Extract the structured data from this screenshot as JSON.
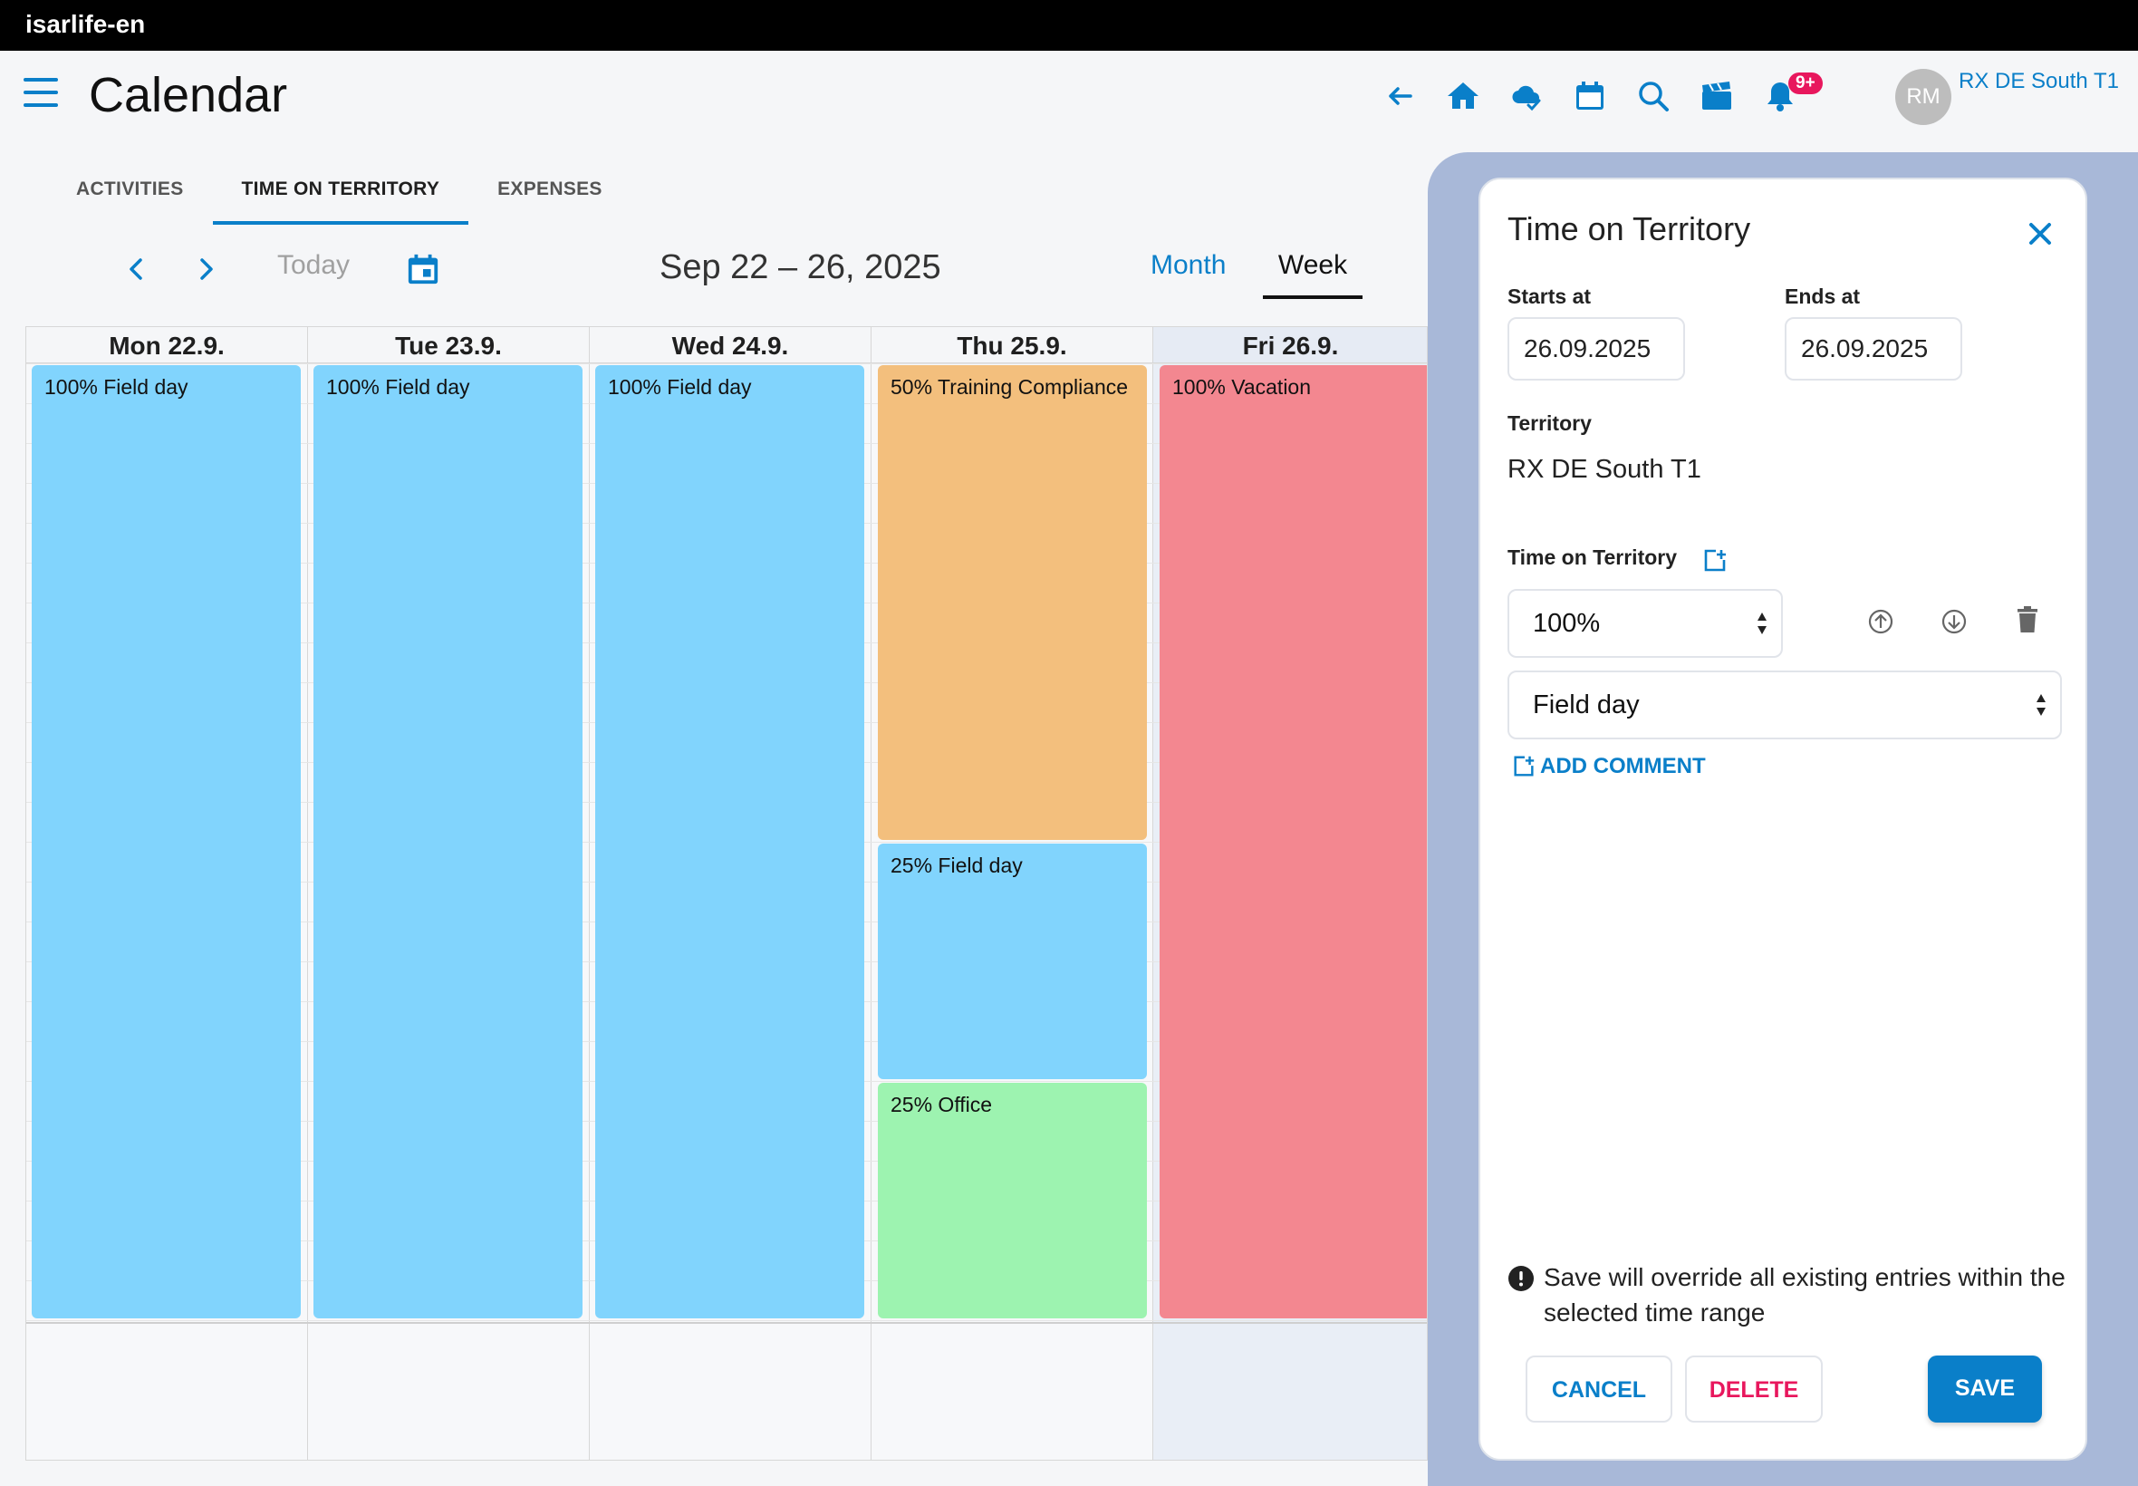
{
  "status_bar": {
    "app_name": "isarlife-en"
  },
  "header": {
    "title": "Calendar",
    "notification_badge": "9+",
    "avatar_initials": "RM",
    "user_territory": "RX DE South T1",
    "icons": [
      "back-arrow-icon",
      "home-icon",
      "cloud-sync-icon",
      "calendar-icon",
      "search-icon",
      "clapperboard-icon",
      "bell-icon"
    ]
  },
  "tabs": [
    {
      "label": "ACTIVITIES",
      "active": false
    },
    {
      "label": "TIME ON TERRITORY",
      "active": true
    },
    {
      "label": "EXPENSES",
      "active": false
    }
  ],
  "toolbar": {
    "today": "Today",
    "range": "Sep 22 – 26, 2025",
    "view_month": "Month",
    "view_week": "Week",
    "active_view": "Week"
  },
  "calendar": {
    "days": [
      {
        "label": "Mon 22.9."
      },
      {
        "label": "Tue 23.9."
      },
      {
        "label": "Wed 24.9."
      },
      {
        "label": "Thu 25.9."
      },
      {
        "label": "Fri 26.9."
      }
    ],
    "events": {
      "mon": {
        "label": "100% Field day",
        "percent": 100,
        "color": "#81d4fd"
      },
      "tue": {
        "label": "100% Field day",
        "percent": 100,
        "color": "#81d4fd"
      },
      "wed": {
        "label": "100% Field day",
        "percent": 100,
        "color": "#81d4fd"
      },
      "thu_1": {
        "label": "50% Training Compliance",
        "percent": 50,
        "color": "#f3bf7d"
      },
      "thu_2": {
        "label": "25% Field day",
        "percent": 25,
        "color": "#81d4fd"
      },
      "thu_3": {
        "label": "25% Office",
        "percent": 25,
        "color": "#9df3b0"
      },
      "fri": {
        "label": "100% Vacation",
        "percent": 100,
        "color": "#f38790"
      }
    }
  },
  "panel": {
    "title": "Time on Territory",
    "starts_label": "Starts at",
    "starts_value": "26.09.2025",
    "ends_label": "Ends at",
    "ends_value": "26.09.2025",
    "territory_label": "Territory",
    "territory_value": "RX DE South T1",
    "tot_label": "Time on Territory",
    "percent_value": "100%",
    "type_value": "Field day",
    "add_comment": "ADD COMMENT",
    "warning": "Save will override all existing entries within the selected time range",
    "cancel": "CANCEL",
    "delete": "DELETE",
    "save": "SAVE"
  },
  "colors": {
    "accent": "#0a7fc9",
    "danger": "#e8175d",
    "panel_backdrop": "#a8b8d8"
  }
}
